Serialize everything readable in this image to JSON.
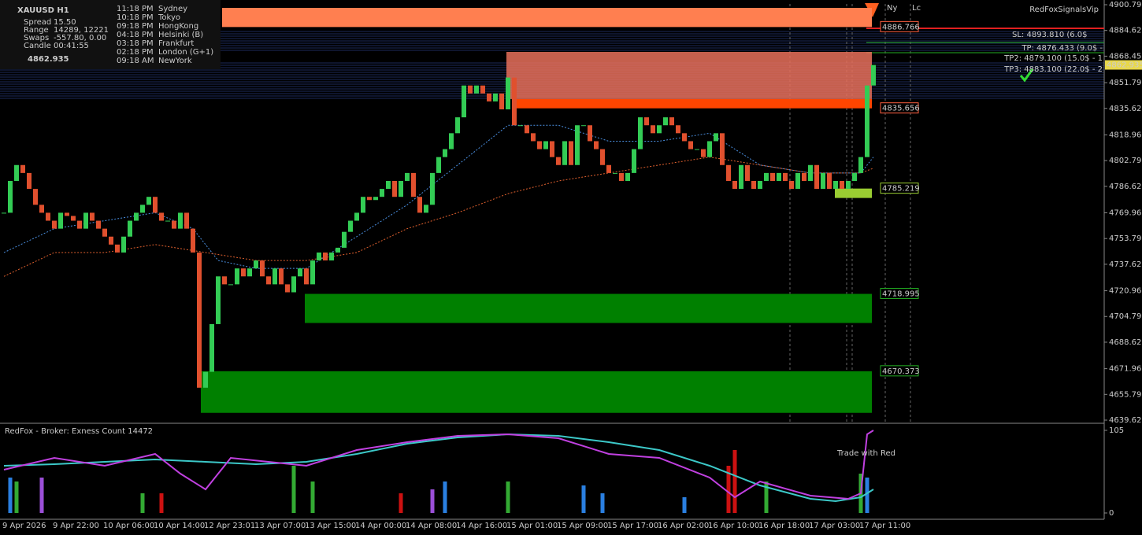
{
  "chart_data": {
    "type": "candlestick",
    "info": {
      "symbol": "XAUUSD  H1",
      "rows": [
        [
          "Spread",
          "15.50"
        ],
        [
          "Range",
          "14289, 12221"
        ],
        [
          "Swaps",
          "-557.80, 0.00"
        ],
        [
          "Candle",
          "00:41:55"
        ]
      ],
      "sessions": [
        [
          "11:18 PM",
          "Sydney"
        ],
        [
          "10:18 PM",
          "Tokyo"
        ],
        [
          "09:18 PM",
          "HongKong"
        ],
        [
          "04:18 PM",
          "Helsinki  (B)"
        ],
        [
          "03:18 PM",
          "Frankfurt"
        ],
        [
          "02:18 PM",
          "London  (G+1)"
        ],
        [
          "09:18 AM",
          "NewYork"
        ]
      ]
    },
    "brand": "RedFoxSignalsVip",
    "session_marks": [
      "Ny",
      "Lc"
    ],
    "trade_texts": [
      "SL: 4893.810 (6.0$",
      "TP: 4876.433 (9.0$ -",
      "TP2: 4879.100 (15.0$ - 1",
      "TP3: 4883.100 (22.0$ - 2"
    ],
    "categories": [
      "9 Apr 2026",
      null,
      null,
      null,
      null,
      null,
      null,
      null,
      "9 Apr 22:00",
      null,
      null,
      null,
      null,
      null,
      null,
      null,
      "10 Apr 06:00",
      null,
      null,
      null,
      null,
      null,
      null,
      null,
      "10 Apr 14:00",
      null,
      null,
      null,
      null,
      null,
      null,
      null,
      "12 Apr 23:01",
      null,
      null,
      null,
      null,
      null,
      null,
      null,
      "13 Apr 07:00",
      null,
      null,
      null,
      null,
      null,
      null,
      null,
      "13 Apr 15:00",
      null,
      null,
      null,
      null,
      null,
      null,
      null,
      "14 Apr 00:00",
      null,
      null,
      null,
      null,
      null,
      null,
      null,
      "14 Apr 08:00",
      null,
      null,
      null,
      null,
      null,
      null,
      null,
      "14 Apr 16:00",
      null,
      null,
      null,
      null,
      null,
      null,
      null,
      "15 Apr 01:00",
      null,
      null,
      null,
      null,
      null,
      null,
      null,
      "15 Apr 09:00",
      null,
      null,
      null,
      null,
      null,
      null,
      null,
      "15 Apr 17:00",
      null,
      null,
      null,
      null,
      null,
      null,
      null,
      "16 Apr 02:00",
      null,
      null,
      null,
      null,
      null,
      null,
      null,
      "16 Apr 10:00",
      null,
      null,
      null,
      null,
      null,
      null,
      null,
      "16 Apr 18:00",
      null,
      null,
      null,
      null,
      null,
      null,
      null,
      "17 Apr 03:00",
      null,
      null,
      null,
      null,
      null,
      null,
      null,
      "17 Apr 11:00",
      null,
      null
    ],
    "close": [
      4770,
      4790,
      4800,
      4795,
      4785,
      4775,
      4770,
      4765,
      4760,
      4770,
      4768,
      4765,
      4760,
      4770,
      4765,
      4760,
      4755,
      4750,
      4745,
      4755,
      4765,
      4770,
      4775,
      4780,
      4770,
      4765,
      4765,
      4760,
      4770,
      4760,
      4745,
      4660,
      4670,
      4700,
      4730,
      4725,
      4725,
      4735,
      4730,
      4735,
      4740,
      4730,
      4725,
      4735,
      4725,
      4720,
      4730,
      4735,
      4725,
      4740,
      4745,
      4740,
      4745,
      4748,
      4758,
      4765,
      4770,
      4780,
      4778,
      4780,
      4785,
      4790,
      4780,
      4790,
      4795,
      4780,
      4770,
      4775,
      4795,
      4805,
      4810,
      4820,
      4830,
      4850,
      4845,
      4850,
      4845,
      4840,
      4845,
      4835,
      4855,
      4825,
      4825,
      4820,
      4815,
      4810,
      4815,
      4805,
      4800,
      4815,
      4800,
      4825,
      4825,
      4815,
      4810,
      4800,
      4795,
      4795,
      4790,
      4795,
      4810,
      4830,
      4825,
      4820,
      4825,
      4830,
      4825,
      4820,
      4815,
      4810,
      4810,
      4805,
      4815,
      4820,
      4800,
      4790,
      4785,
      4800,
      4790,
      4785,
      4790,
      4795,
      4790,
      4795,
      4790,
      4785,
      4795,
      4790,
      4800,
      4785,
      4795,
      4785,
      4790,
      4785,
      4790,
      4795,
      4805,
      4850,
      4862.935
    ],
    "up_color": "#33cc55",
    "down_color": "#e0502e",
    "ma": [
      {
        "color": "#4a8fe0",
        "x": [
          0,
          8,
          16,
          24,
          30,
          34,
          40,
          48,
          56,
          64,
          72,
          80,
          88,
          96,
          104,
          112,
          120,
          128,
          136,
          138
        ],
        "values": [
          4745,
          4760,
          4765,
          4770,
          4760,
          4740,
          4735,
          4735,
          4755,
          4775,
          4800,
          4825,
          4825,
          4815,
          4815,
          4820,
          4800,
          4795,
          4795,
          4805
        ]
      },
      {
        "color": "#e0602e",
        "x": [
          0,
          8,
          16,
          24,
          32,
          40,
          48,
          56,
          64,
          72,
          80,
          88,
          96,
          104,
          112,
          120,
          128,
          136,
          138
        ],
        "values": [
          4730,
          4745,
          4745,
          4750,
          4745,
          4740,
          4740,
          4745,
          4760,
          4770,
          4782,
          4790,
          4795,
          4800,
          4805,
          4800,
          4795,
          4795,
          4798
        ]
      }
    ],
    "zones": [
      {
        "value": 4886.766,
        "top": 4898.8,
        "color": "#ff7f50",
        "label_color": "#ff6040"
      },
      {
        "value": 4835.656,
        "top": 4841.5,
        "color": "#ff4500",
        "label_color": "#ff6040"
      },
      {
        "value": 4785.219,
        "top": 4779.3,
        "color": "#9acd32",
        "label_color": "#9acd32"
      },
      {
        "value": 4718.995,
        "top": 4700.7,
        "color": "#008000",
        "label_color": "#22aa22"
      },
      {
        "value": 4670.373,
        "top": 4644.2,
        "color": "#008000",
        "label_color": "#22aa22"
      }
    ],
    "ylim": [
      4639.62,
      4900.79
    ],
    "yticks": [
      {
        "value": 4900.79,
        "label": "4900.790"
      },
      {
        "value": 4884.62,
        "label": "4884.620"
      },
      {
        "value": 4868.45,
        "label": "4868.450"
      },
      {
        "value": 4851.79,
        "label": "4851.790"
      },
      {
        "value": 4835.62,
        "label": "4835.620"
      },
      {
        "value": 4818.96,
        "label": "4818.960"
      },
      {
        "value": 4802.79,
        "label": "4802.790"
      },
      {
        "value": 4786.62,
        "label": "4786.620"
      },
      {
        "value": 4769.96,
        "label": "4769.960"
      },
      {
        "value": 4753.79,
        "label": "4753.790"
      },
      {
        "value": 4737.62,
        "label": "4737.620"
      },
      {
        "value": 4720.96,
        "label": "4720.960"
      },
      {
        "value": 4704.79,
        "label": "4704.790"
      },
      {
        "value": 4688.62,
        "label": "4688.620"
      },
      {
        "value": 4671.96,
        "label": "4671.960"
      },
      {
        "value": 4655.79,
        "label": "4655.790"
      },
      {
        "value": 4639.62,
        "label": "4639.620"
      }
    ],
    "indicator": {
      "title": "RedFox -  Broker: Exness    Count  14472",
      "note": "Trade with Red",
      "ylim": [
        0,
        105
      ],
      "yticks": [
        105,
        0
      ],
      "lines": [
        {
          "color": "#3cc8c8",
          "x": [
            0,
            8,
            16,
            24,
            32,
            40,
            48,
            56,
            64,
            72,
            80,
            88,
            96,
            104,
            112,
            120,
            128,
            132,
            136,
            138
          ],
          "values": [
            60,
            62,
            65,
            68,
            65,
            62,
            65,
            75,
            88,
            96,
            100,
            98,
            90,
            80,
            60,
            35,
            18,
            15,
            20,
            30
          ]
        },
        {
          "color": "#c040e0",
          "x": [
            0,
            8,
            16,
            24,
            28,
            32,
            36,
            48,
            56,
            64,
            72,
            80,
            88,
            96,
            104,
            112,
            116,
            120,
            128,
            134,
            136,
            137,
            138
          ],
          "values": [
            55,
            70,
            60,
            75,
            50,
            30,
            70,
            60,
            80,
            90,
            98,
            100,
            95,
            75,
            70,
            45,
            20,
            40,
            22,
            18,
            25,
            100,
            105
          ]
        }
      ],
      "bars": {
        "x": [
          1,
          2,
          6,
          22,
          25,
          46,
          49,
          63,
          68,
          70,
          80,
          92,
          95,
          108,
          115,
          116,
          121,
          136,
          137
        ],
        "values": [
          45,
          40,
          45,
          25,
          25,
          60,
          40,
          25,
          30,
          40,
          40,
          35,
          25,
          20,
          60,
          80,
          40,
          50,
          45
        ],
        "colors": [
          "#2a7fe0",
          "#33aa33",
          "#9b4fd8",
          "#33aa33",
          "#cc1111",
          "#33aa33",
          "#33aa33",
          "#cc1111",
          "#9b4fd8",
          "#2a7fe0",
          "#33aa33",
          "#2a7fe0",
          "#2a7fe0",
          "#2a7fe0",
          "#cc1111",
          "#cc1111",
          "#33aa33",
          "#33aa33",
          "#2a7fe0"
        ]
      }
    }
  }
}
